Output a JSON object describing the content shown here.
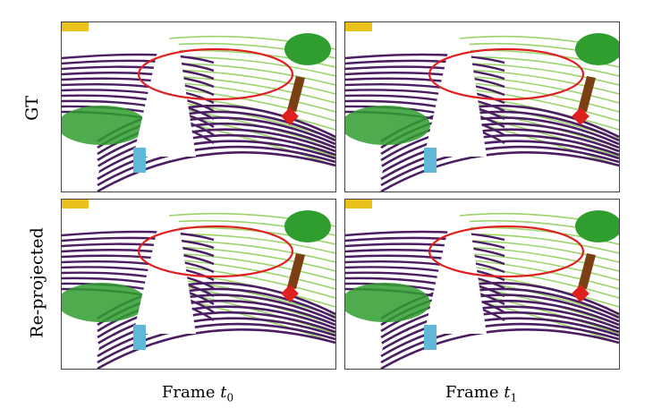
{
  "rows": [
    {
      "label": "GT"
    },
    {
      "label": "Re-projected"
    }
  ],
  "columns": [
    {
      "prefix": "Frame ",
      "var": "t",
      "sub": "0"
    },
    {
      "prefix": "Frame ",
      "var": "t",
      "sub": "1"
    }
  ],
  "colors": {
    "road": "#4b1e63",
    "vegetation": "#2f9e2f",
    "terrain": "#9bd46a",
    "trunk": "#7a3f12",
    "car_sign": "#e0201f",
    "pole": "#5fb8d8",
    "building": "#e8c21a",
    "highlight_ellipse": "#e02020"
  }
}
